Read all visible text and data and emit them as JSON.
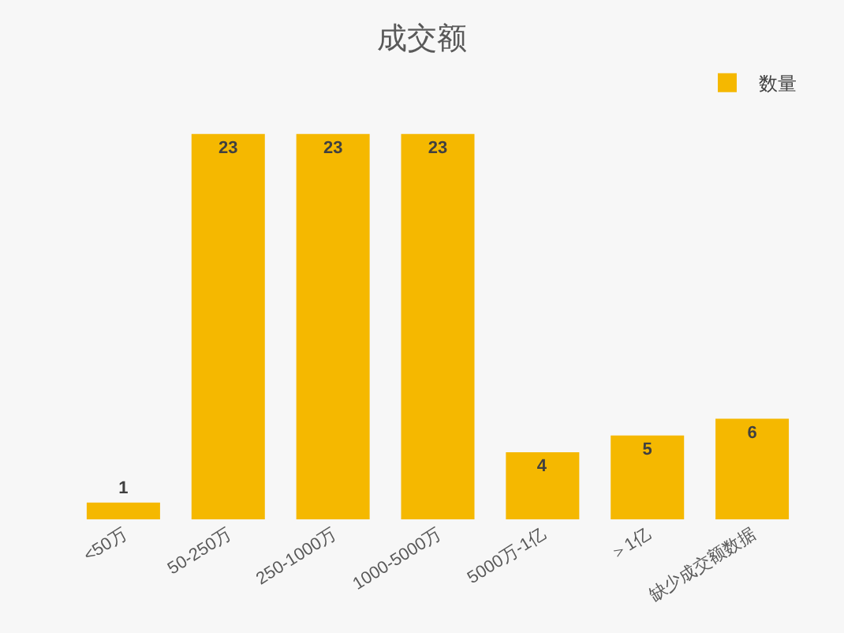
{
  "chart_data": {
    "type": "bar",
    "title": "成交额",
    "categories": [
      "<50万",
      "50-250万",
      "250-1000万",
      "1000-5000万",
      "5000万-1亿",
      "＞1亿",
      "缺少成交额数据"
    ],
    "series": [
      {
        "name": "数量",
        "color": "#f5b800",
        "values": [
          1,
          23,
          23,
          23,
          4,
          5,
          6
        ]
      }
    ],
    "data_labels": true,
    "legend": "top right"
  }
}
